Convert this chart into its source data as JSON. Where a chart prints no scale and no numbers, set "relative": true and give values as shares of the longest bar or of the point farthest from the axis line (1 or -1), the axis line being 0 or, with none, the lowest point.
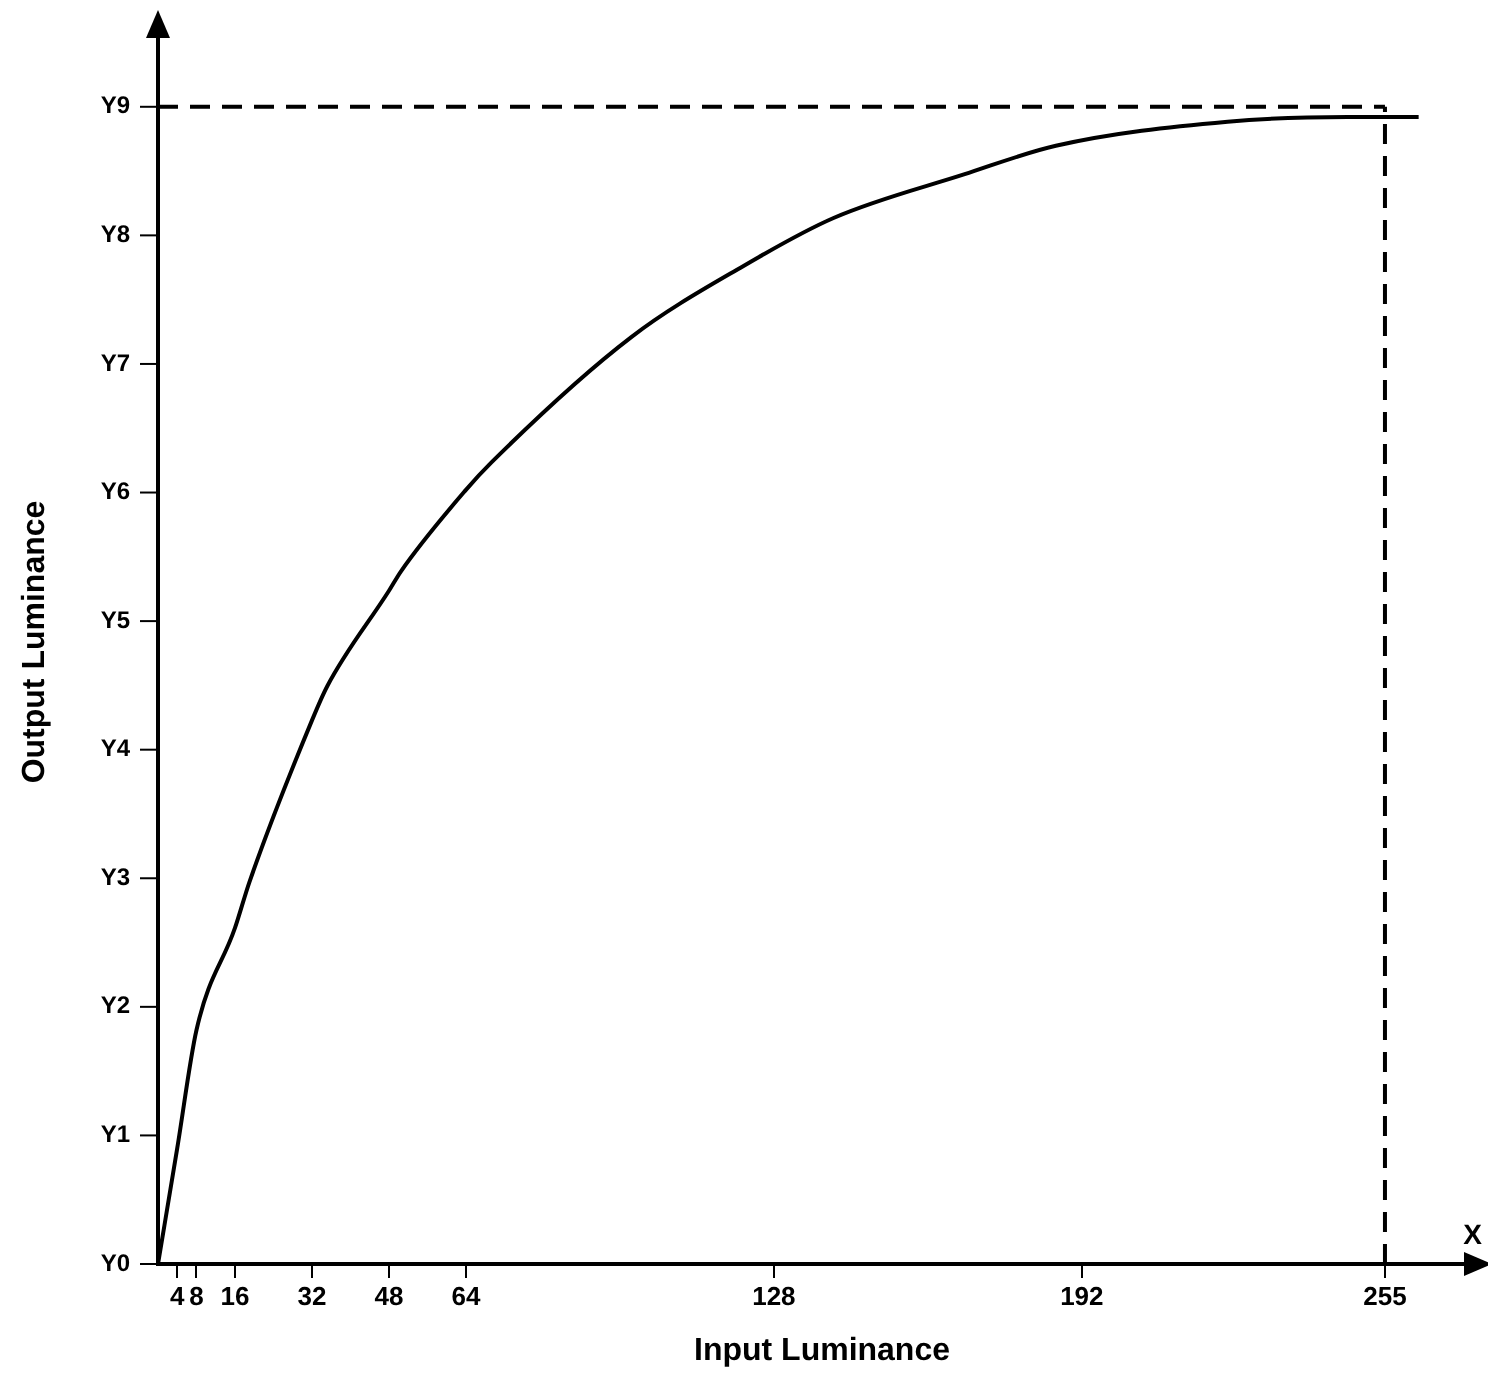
{
  "chart_data": {
    "type": "line",
    "xlabel": "Input Luminance",
    "ylabel": "Output Luminance",
    "relative": true,
    "annotations": [
      "X",
      "Y0",
      "Y1",
      "Y2",
      "Y3",
      "Y4",
      "Y5",
      "Y6",
      "Y7",
      "Y8",
      "Y9"
    ],
    "xlim": [
      0,
      276
    ],
    "xticks": [
      4,
      8,
      16,
      32,
      48,
      64,
      128,
      192,
      255
    ],
    "x": [
      0,
      4,
      8,
      16,
      19,
      32,
      35.2,
      48,
      50.5,
      64,
      69.3,
      98.3,
      121.6,
      140.4,
      167.5,
      186.6,
      222.3,
      247.2,
      255,
      262
    ],
    "series": [
      {
        "color": "#000000",
        "values": [
          0,
          0.101,
          0.204,
          0.293,
          0.333,
          0.474,
          0.504,
          0.587,
          0.604,
          0.675,
          0.699,
          0.808,
          0.87,
          0.912,
          0.95,
          0.975,
          0.996,
          1,
          1,
          1
        ]
      }
    ],
    "ref_lines": [
      {
        "axis": "y",
        "value": 1.009,
        "color": "#000000",
        "line_style": "dashed"
      },
      {
        "axis": "x",
        "value": 255,
        "color": "#000000",
        "line_style": "dashed"
      }
    ],
    "grid": false,
    "legend": false,
    "marker": "none",
    "line_style": "solid"
  }
}
